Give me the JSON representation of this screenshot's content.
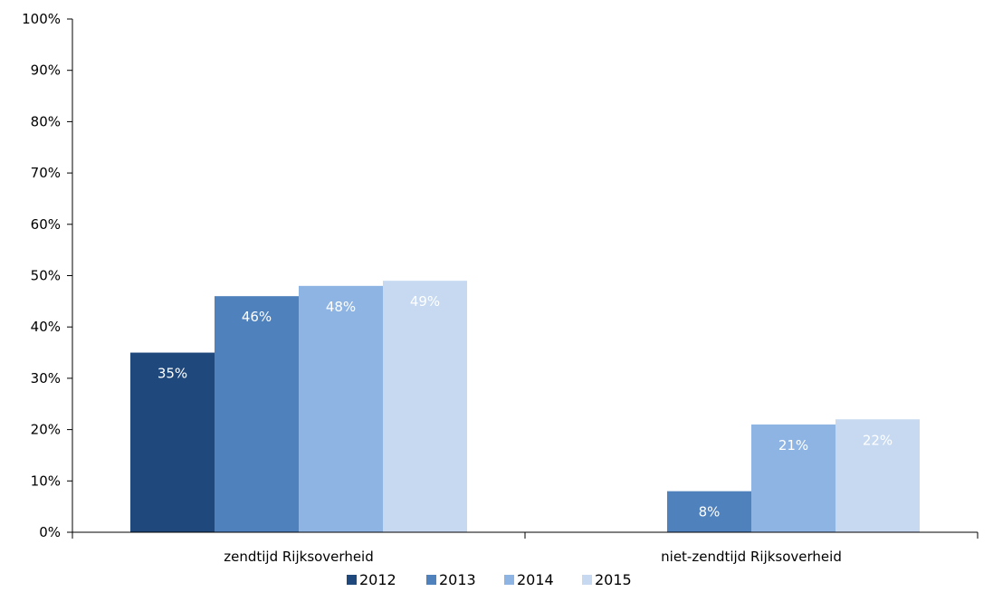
{
  "chart_data": {
    "type": "bar",
    "categories": [
      "zendtijd Rijksoverheid",
      "niet-zendtijd Rijksoverheid"
    ],
    "series": [
      {
        "name": "2012",
        "values": [
          35,
          null
        ],
        "labels": [
          "35%",
          null
        ],
        "color": "#1F497D"
      },
      {
        "name": "2013",
        "values": [
          46,
          8
        ],
        "labels": [
          "46%",
          "8%"
        ],
        "color": "#4F81BD"
      },
      {
        "name": "2014",
        "values": [
          48,
          21
        ],
        "labels": [
          "48%",
          "21%"
        ],
        "color": "#8EB4E3"
      },
      {
        "name": "2015",
        "values": [
          49,
          22
        ],
        "labels": [
          "49%",
          "22%"
        ],
        "color": "#C6D9F1"
      }
    ],
    "yticks": [
      0,
      10,
      20,
      30,
      40,
      50,
      60,
      70,
      80,
      90,
      100
    ],
    "ytick_labels": [
      "0%",
      "10%",
      "20%",
      "30%",
      "40%",
      "50%",
      "60%",
      "70%",
      "80%",
      "90%",
      "100%"
    ],
    "ylim": [
      0,
      100
    ],
    "xlabel": "",
    "ylabel": "",
    "grid": false,
    "legend_position": "bottom-center"
  }
}
